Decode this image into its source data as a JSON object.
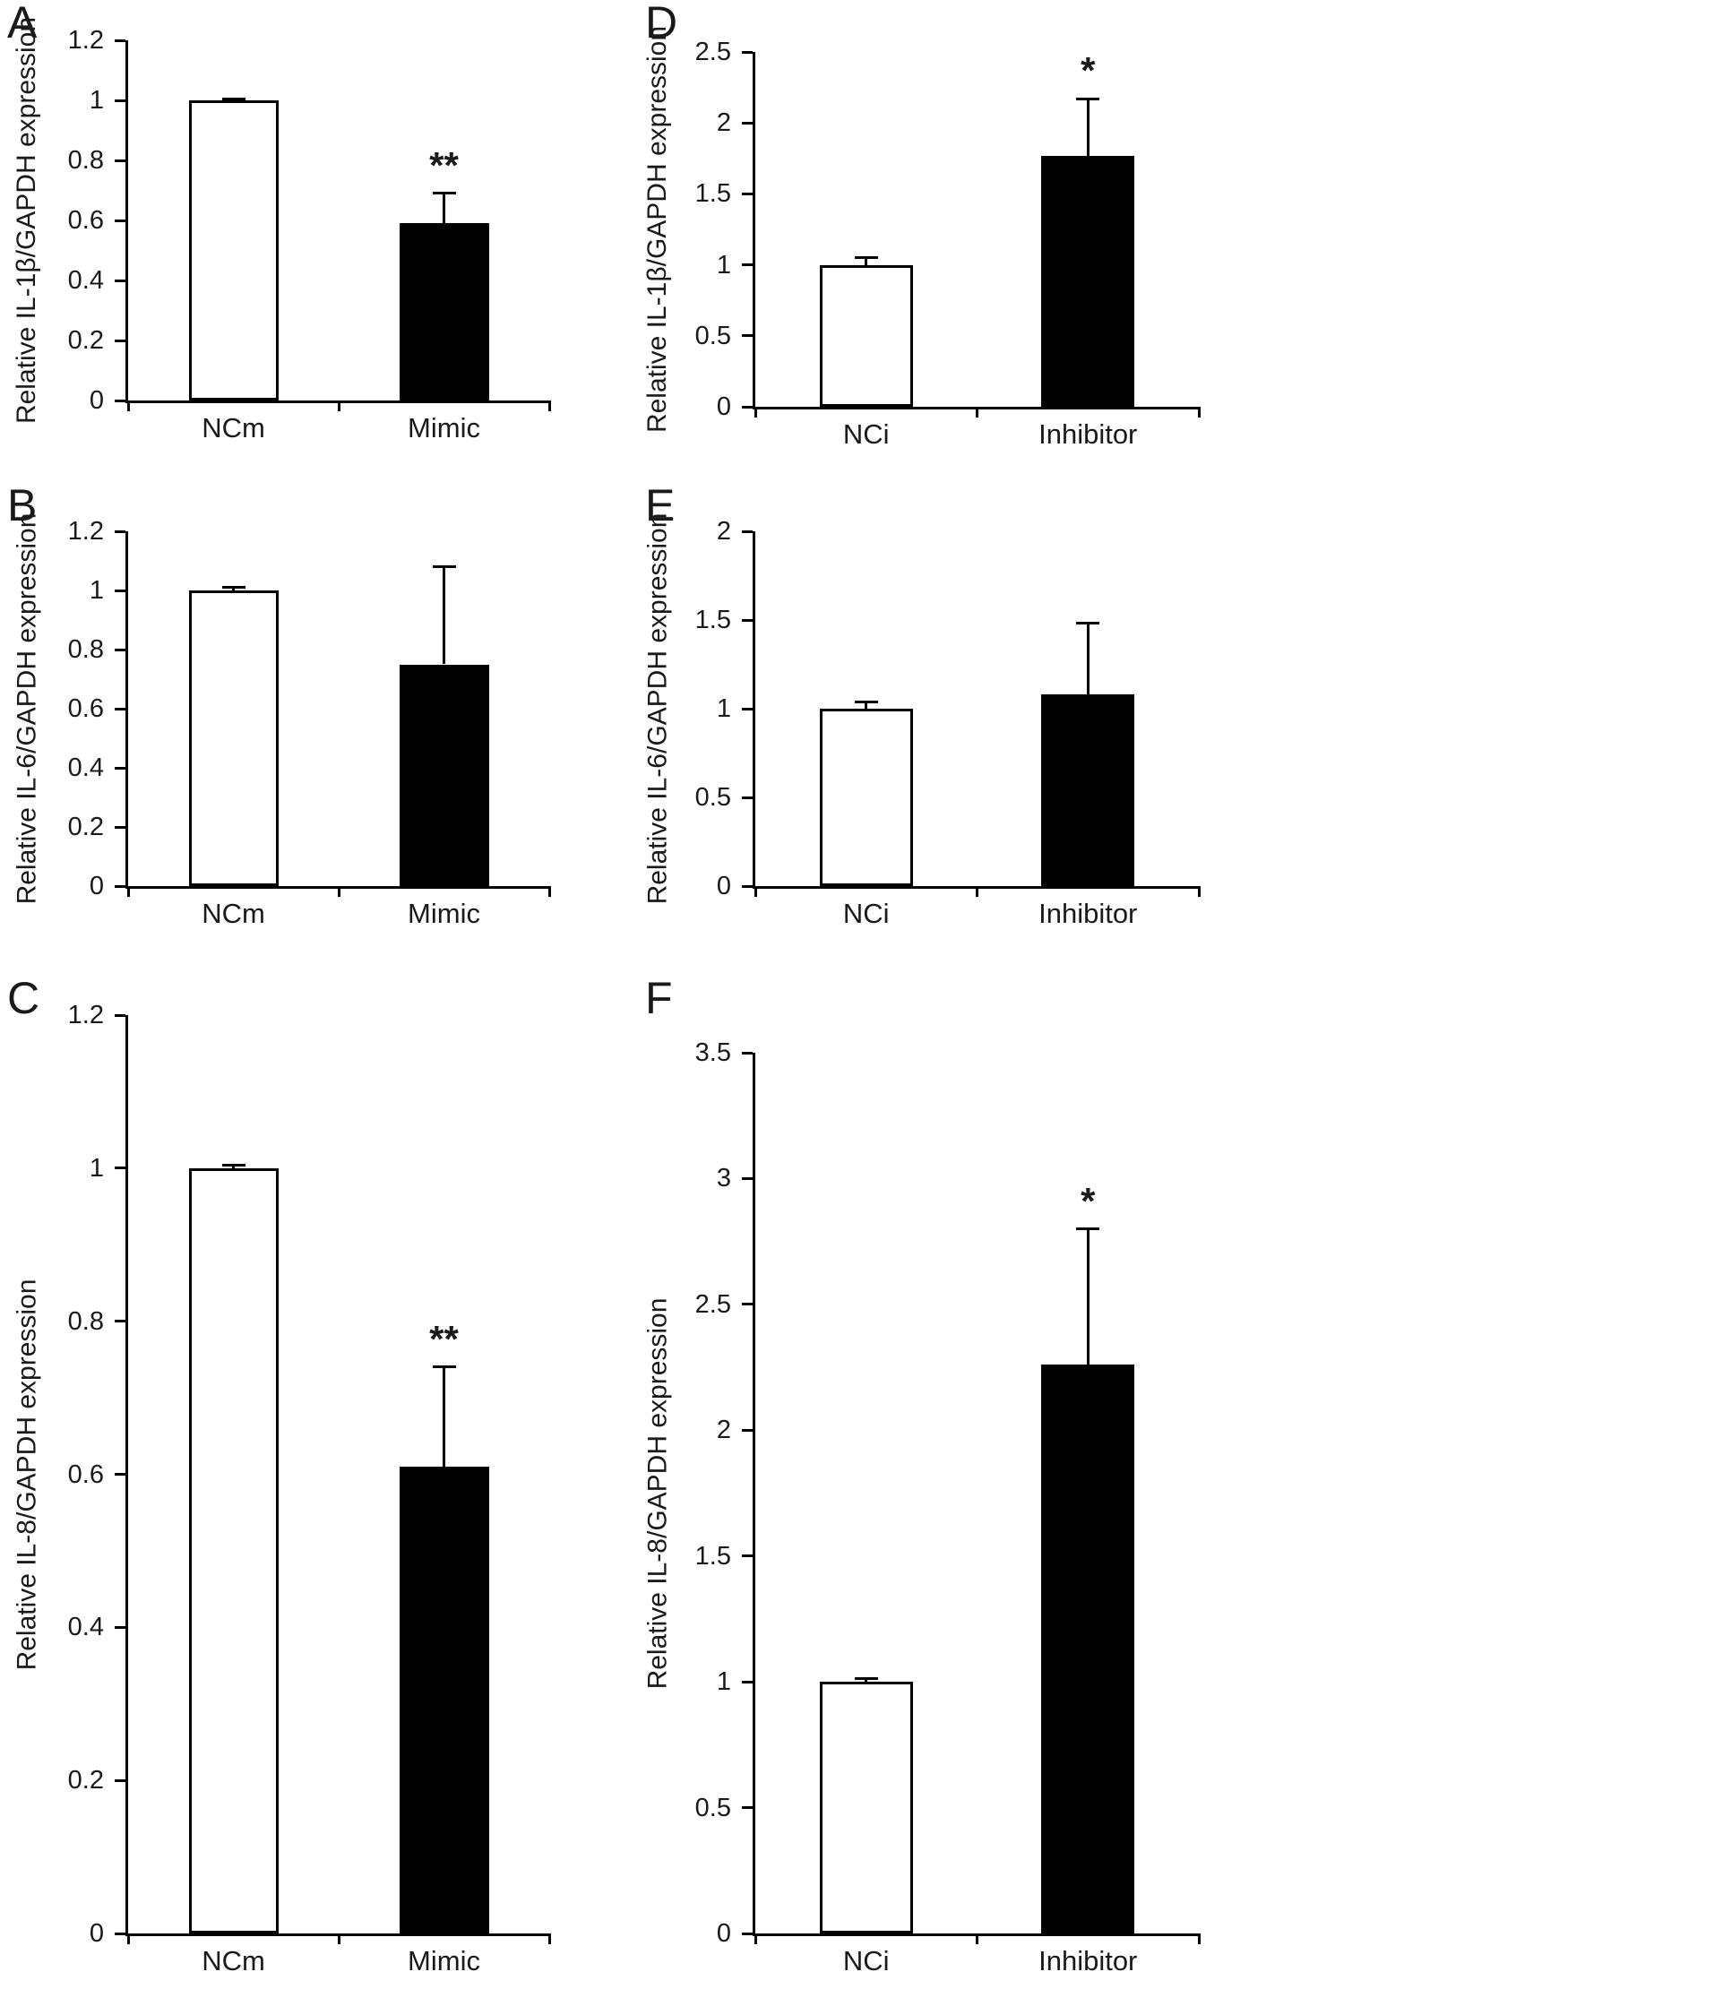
{
  "figure": {
    "background_color": "#ffffff",
    "axis_color": "#000000",
    "text_color": "#000000"
  },
  "chart_data": [
    {
      "panel": "A",
      "type": "bar",
      "title": "",
      "xlabel": "",
      "ylabel": "Relative IL-1β/GAPDH expression",
      "categories": [
        "NCm",
        "Mimic"
      ],
      "values": [
        1.0,
        0.59
      ],
      "errors_plus": [
        0.005,
        0.1
      ],
      "significance": [
        "",
        "**"
      ],
      "ylim": [
        0,
        1.2
      ],
      "ytick_labels_top_to_bottom": [
        "1.2",
        "1",
        "0.8",
        "0.6",
        "0.4",
        "0.2",
        "0"
      ],
      "bar_fill_colors": [
        "#ffffff",
        "#000000"
      ],
      "grid": false,
      "legend": null
    },
    {
      "panel": "B",
      "type": "bar",
      "title": "",
      "xlabel": "",
      "ylabel": "Relative IL-6/GAPDH expression",
      "categories": [
        "NCm",
        "Mimic"
      ],
      "values": [
        1.0,
        0.75
      ],
      "errors_plus": [
        0.012,
        0.33
      ],
      "significance": [
        "",
        ""
      ],
      "ylim": [
        0,
        1.2
      ],
      "ytick_labels_top_to_bottom": [
        "1.2",
        "1",
        "0.8",
        "0.6",
        "0.4",
        "0.2",
        "0"
      ],
      "bar_fill_colors": [
        "#ffffff",
        "#000000"
      ],
      "grid": false,
      "legend": null
    },
    {
      "panel": "C",
      "type": "bar",
      "title": "",
      "xlabel": "",
      "ylabel": "Relative IL-8/GAPDH expression",
      "categories": [
        "NCm",
        "Mimic"
      ],
      "values": [
        1.0,
        0.61
      ],
      "errors_plus": [
        0.004,
        0.13
      ],
      "significance": [
        "",
        "**"
      ],
      "ylim": [
        0,
        1.2
      ],
      "ytick_labels_top_to_bottom": [
        "1.2",
        "1",
        "0.8",
        "0.6",
        "0.4",
        "0.2",
        "0"
      ],
      "bar_fill_colors": [
        "#ffffff",
        "#000000"
      ],
      "grid": false,
      "legend": null
    },
    {
      "panel": "D",
      "type": "bar",
      "title": "",
      "xlabel": "",
      "ylabel": "Relative IL-1β/GAPDH expression",
      "categories": [
        "NCi",
        "Inhibitor"
      ],
      "values": [
        1.0,
        1.77
      ],
      "errors_plus": [
        0.05,
        0.4
      ],
      "significance": [
        "",
        "*"
      ],
      "ylim": [
        0,
        2.5
      ],
      "ytick_labels_top_to_bottom": [
        "2.5",
        "2",
        "1.5",
        "1",
        "0.5",
        "0"
      ],
      "bar_fill_colors": [
        "#ffffff",
        "#000000"
      ],
      "grid": false,
      "legend": null
    },
    {
      "panel": "E",
      "type": "bar",
      "title": "",
      "xlabel": "",
      "ylabel": "Relative IL-6/GAPDH expression",
      "categories": [
        "NCi",
        "Inhibitor"
      ],
      "values": [
        1.0,
        1.08
      ],
      "errors_plus": [
        0.04,
        0.4
      ],
      "significance": [
        "",
        ""
      ],
      "ylim": [
        0,
        2
      ],
      "ytick_labels_top_to_bottom": [
        "2",
        "1.5",
        "1",
        "0.5",
        "0"
      ],
      "bar_fill_colors": [
        "#ffffff",
        "#000000"
      ],
      "grid": false,
      "legend": null
    },
    {
      "panel": "F",
      "type": "bar",
      "title": "",
      "xlabel": "",
      "ylabel": "Relative IL-8/GAPDH expression",
      "categories": [
        "NCi",
        "Inhibitor"
      ],
      "values": [
        1.0,
        2.26
      ],
      "errors_plus": [
        0.012,
        0.54
      ],
      "significance": [
        "",
        "*"
      ],
      "ylim": [
        0,
        3.5
      ],
      "ytick_labels_top_to_bottom": [
        "3.5",
        "3",
        "2.5",
        "2",
        "1.5",
        "1",
        "0.5",
        "0"
      ],
      "bar_fill_colors": [
        "#ffffff",
        "#000000"
      ],
      "grid": false,
      "legend": null
    }
  ]
}
